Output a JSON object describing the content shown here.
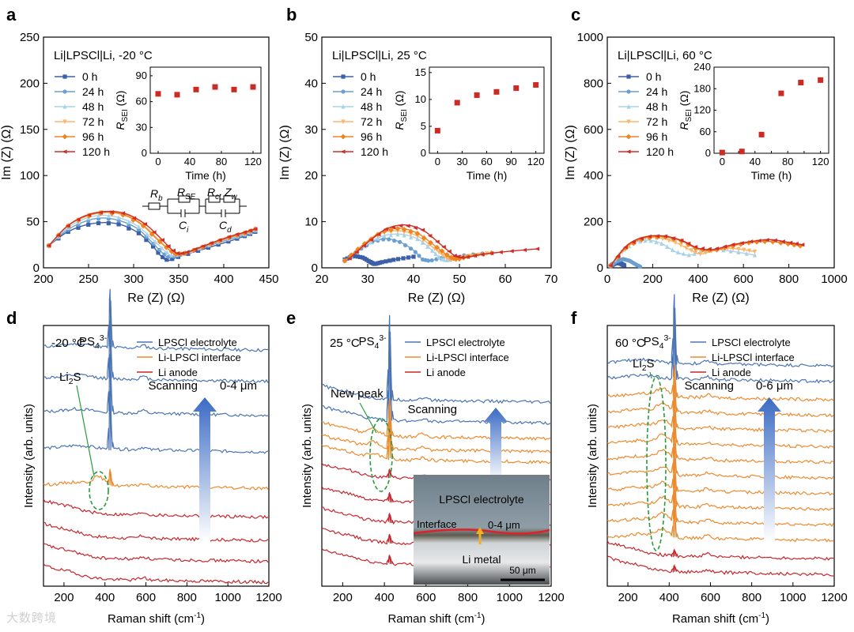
{
  "figure_labels": [
    "a",
    "b",
    "c",
    "d",
    "e",
    "f"
  ],
  "colors": {
    "0 h": "#3b5fa8",
    "24 h": "#6a9fd0",
    "48 h": "#a9d2ea",
    "72 h": "#f9b66c",
    "96 h": "#ef8420",
    "120 h": "#cf2d25",
    "inset": "#cc2a22",
    "electrolyte": "#4a74b4",
    "interface": "#ee8a2e",
    "anode": "#c8262b",
    "li2s": "#2a9a3a",
    "ps4": "#4a74b4"
  },
  "chart_data": [
    {
      "id": "a",
      "type": "line",
      "title": "Li|LPSCl|Li, -20 °C",
      "xlabel": "Re (Z) (Ω)",
      "ylabel": "Im (Z) (Ω)",
      "xlim": [
        200,
        450
      ],
      "ylim": [
        0,
        250
      ],
      "xticks": [
        200,
        250,
        300,
        350,
        400,
        450
      ],
      "yticks": [
        0,
        50,
        100,
        150,
        200,
        250
      ],
      "legend": [
        "0 h",
        "24 h",
        "48 h",
        "72 h",
        "96 h",
        "120 h"
      ],
      "circuit": {
        "Rb": "Rb",
        "RSE": "RSE",
        "Rct": "Rct",
        "Zw": "Zw",
        "Ci": "Ci",
        "Cd": "Cd"
      },
      "series": [
        {
          "name": "0 h",
          "x": [
            206,
            225,
            245,
            265,
            285,
            305,
            320,
            330,
            338,
            350,
            370,
            390,
            410,
            425,
            435
          ],
          "y": [
            24,
            38,
            46,
            49,
            47,
            38,
            25,
            13,
            8,
            12,
            18,
            24,
            30,
            35,
            39
          ]
        },
        {
          "name": "24 h",
          "x": [
            206,
            225,
            245,
            265,
            285,
            305,
            320,
            332,
            340,
            352,
            370,
            390,
            410,
            425,
            435
          ],
          "y": [
            24,
            40,
            50,
            54,
            51,
            42,
            28,
            16,
            11,
            14,
            20,
            26,
            32,
            36,
            40
          ]
        },
        {
          "name": "48 h",
          "x": [
            206,
            225,
            245,
            265,
            285,
            305,
            322,
            335,
            343,
            355,
            372,
            390,
            410,
            425,
            435
          ],
          "y": [
            24,
            42,
            53,
            57,
            54,
            45,
            30,
            18,
            13,
            15,
            21,
            27,
            33,
            37,
            41
          ]
        },
        {
          "name": "72 h",
          "x": [
            206,
            225,
            245,
            268,
            290,
            310,
            327,
            340,
            348,
            358,
            375,
            392,
            410,
            425,
            435
          ],
          "y": [
            24,
            44,
            56,
            61,
            58,
            47,
            31,
            19,
            14,
            16,
            22,
            28,
            34,
            38,
            42
          ]
        },
        {
          "name": "96 h",
          "x": [
            206,
            225,
            245,
            268,
            290,
            310,
            327,
            340,
            348,
            358,
            375,
            392,
            410,
            425,
            435
          ],
          "y": [
            24,
            44,
            55,
            60,
            57,
            46,
            30,
            19,
            14,
            16,
            22,
            28,
            34,
            38,
            42
          ]
        },
        {
          "name": "120 h",
          "x": [
            206,
            225,
            245,
            268,
            290,
            312,
            330,
            342,
            350,
            360,
            376,
            392,
            410,
            425,
            435
          ],
          "y": [
            24,
            44,
            56,
            61,
            59,
            48,
            32,
            20,
            15,
            17,
            23,
            29,
            35,
            39,
            42
          ]
        }
      ],
      "inset": {
        "xlabel": "Time (h)",
        "ylabel": "R_SEI (Ω)",
        "xlim": [
          -10,
          130
        ],
        "ylim": [
          0,
          100
        ],
        "xticks": [
          0,
          40,
          80,
          120
        ],
        "yticks": [
          0,
          30,
          60,
          90
        ],
        "x": [
          0,
          24,
          48,
          72,
          96,
          120
        ],
        "y": [
          69,
          68,
          74,
          77,
          74,
          77
        ]
      }
    },
    {
      "id": "b",
      "type": "line",
      "title": "Li|LPSCl|Li, 25 °C",
      "xlabel": "Re (Z) (Ω)",
      "ylabel": "Im (Z) (Ω)",
      "xlim": [
        20,
        70
      ],
      "ylim": [
        0,
        50
      ],
      "xticks": [
        20,
        30,
        40,
        50,
        60,
        70
      ],
      "yticks": [
        0,
        10,
        20,
        30,
        40,
        50
      ],
      "legend": [
        "0 h",
        "24 h",
        "48 h",
        "72 h",
        "96 h",
        "120 h"
      ],
      "series": [
        {
          "name": "0 h",
          "x": [
            25,
            27,
            29,
            30.5,
            31.5,
            33,
            36,
            40
          ],
          "y": [
            1.8,
            2.6,
            2.2,
            1.3,
            0.8,
            1.2,
            1.8,
            2.4
          ]
        },
        {
          "name": "24 h",
          "x": [
            25,
            28,
            31,
            34,
            37,
            40,
            42,
            43.5,
            46,
            50,
            55
          ],
          "y": [
            1.6,
            3.8,
            5.6,
            6.3,
            5.6,
            3.8,
            1.8,
            1.5,
            2.1,
            2.6,
            3.1
          ]
        },
        {
          "name": "48 h",
          "x": [
            25,
            29,
            33,
            37,
            41,
            44,
            46,
            47.5,
            50,
            55
          ],
          "y": [
            1.5,
            4.5,
            6.8,
            7.3,
            6.2,
            3.8,
            1.9,
            1.6,
            2.3,
            3.0
          ]
        },
        {
          "name": "72 h",
          "x": [
            25,
            29,
            33,
            37,
            41,
            44.5,
            47,
            48.5,
            51,
            56
          ],
          "y": [
            1.5,
            4.8,
            7.5,
            8.0,
            6.8,
            4.2,
            2.2,
            1.7,
            2.4,
            3.1
          ]
        },
        {
          "name": "96 h",
          "x": [
            25,
            29,
            33,
            37,
            41,
            45,
            48,
            49.5,
            52,
            57
          ],
          "y": [
            1.5,
            5.0,
            7.8,
            8.6,
            7.4,
            4.5,
            2.3,
            1.8,
            2.5,
            3.2
          ]
        },
        {
          "name": "120 h",
          "x": [
            26,
            30,
            34,
            38,
            42,
            46,
            49,
            51,
            55,
            60,
            67
          ],
          "y": [
            2.0,
            5.5,
            8.4,
            9.3,
            8.2,
            5.0,
            2.6,
            2.2,
            2.9,
            3.5,
            4.1
          ]
        }
      ],
      "inset": {
        "xlabel": "Time (h)",
        "ylabel": "R_SEI (Ω)",
        "xlim": [
          -10,
          130
        ],
        "ylim": [
          0,
          16
        ],
        "xticks": [
          0,
          30,
          60,
          90,
          120
        ],
        "yticks": [
          0,
          5,
          10,
          15
        ],
        "x": [
          0,
          24,
          48,
          72,
          96,
          120
        ],
        "y": [
          4.2,
          9.4,
          10.8,
          11.4,
          12.1,
          12.7
        ]
      }
    },
    {
      "id": "c",
      "type": "line",
      "title": "Li|LPSCl|Li, 60 °C",
      "xlabel": "Re (Z) (Ω)",
      "ylabel": "Im (Z) (Ω)",
      "xlim": [
        0,
        1000
      ],
      "ylim": [
        0,
        1000
      ],
      "xticks": [
        0,
        200,
        400,
        600,
        800,
        1000
      ],
      "yticks": [
        0,
        200,
        400,
        600,
        800,
        1000
      ],
      "legend": [
        "0 h",
        "24 h",
        "48 h",
        "72 h",
        "96 h",
        "120 h"
      ],
      "series": [
        {
          "name": "0 h",
          "x": [
            15,
            30,
            45,
            60,
            75
          ],
          "y": [
            8,
            18,
            22,
            18,
            10
          ]
        },
        {
          "name": "24 h",
          "x": [
            15,
            40,
            70,
            100,
            130,
            145
          ],
          "y": [
            8,
            28,
            38,
            30,
            12,
            5
          ]
        },
        {
          "name": "48 h",
          "x": [
            15,
            60,
            120,
            180,
            240,
            300,
            360,
            420,
            480,
            560,
            650
          ],
          "y": [
            10,
            70,
            110,
            120,
            105,
            70,
            55,
            70,
            80,
            70,
            55
          ]
        },
        {
          "name": "72 h",
          "x": [
            15,
            80,
            150,
            230,
            300,
            360,
            410,
            470,
            530,
            590,
            650
          ],
          "y": [
            10,
            85,
            125,
            130,
            110,
            80,
            60,
            75,
            85,
            80,
            70
          ]
        },
        {
          "name": "96 h",
          "x": [
            15,
            90,
            170,
            250,
            330,
            400,
            470,
            550,
            630,
            710,
            790,
            850
          ],
          "y": [
            10,
            95,
            130,
            135,
            115,
            80,
            75,
            95,
            110,
            115,
            105,
            95
          ]
        },
        {
          "name": "120 h",
          "x": [
            15,
            90,
            170,
            250,
            330,
            400,
            470,
            550,
            640,
            720,
            800,
            860
          ],
          "y": [
            10,
            100,
            135,
            138,
            118,
            85,
            80,
            100,
            115,
            122,
            110,
            100
          ]
        }
      ],
      "inset": {
        "xlabel": "Time (h)",
        "ylabel": "R_SEI (Ω)",
        "xlim": [
          -10,
          130
        ],
        "ylim": [
          0,
          240
        ],
        "xticks": [
          0,
          20,
          40,
          60,
          80,
          100,
          120
        ],
        "yticks": [
          0,
          60,
          120,
          180,
          240
        ],
        "x": [
          0,
          24,
          48,
          72,
          96,
          120
        ],
        "y": [
          2,
          5,
          52,
          167,
          197,
          204
        ]
      }
    },
    {
      "id": "d",
      "type": "line",
      "xlabel": "Raman shift (cm⁻¹)",
      "ylabel": "Intensity (arb. units)",
      "xlim": [
        100,
        1200
      ],
      "xticks": [
        200,
        400,
        600,
        800,
        1000,
        1200
      ],
      "temperature": "-20 °C",
      "legend": [
        "LPSCl electrolyte",
        "Li-LPSCl interface",
        "Li anode"
      ],
      "annotations": {
        "peak": "PS4 3-",
        "species": "Li2S",
        "scan": "Scanning",
        "depth": "0-4 μm"
      },
      "peak_x": 425,
      "li2s_x": 370,
      "series": [
        {
          "name": "LPSCl electrolyte",
          "offsets": [
            0.92,
            0.8,
            0.67,
            0.53
          ],
          "peak_height": 0.22
        },
        {
          "name": "Li-LPSCl interface",
          "offsets": [
            0.39
          ],
          "peak_height": 0.06
        },
        {
          "name": "Li anode",
          "offsets": [
            0.28,
            0.19,
            0.11,
            0.03
          ],
          "peak_height": 0
        }
      ]
    },
    {
      "id": "e",
      "type": "line",
      "xlabel": "Raman shift (cm⁻¹)",
      "ylabel": "Intensity (arb. units)",
      "xlim": [
        100,
        1200
      ],
      "xticks": [
        200,
        400,
        600,
        800,
        1000,
        1200
      ],
      "temperature": "25 °C",
      "legend": [
        "LPSCl electrolyte",
        "Li-LPSCl interface",
        "Li anode"
      ],
      "annotations": {
        "peak": "PS4 3-",
        "species": "New peak",
        "scan": "Scanning",
        "image_top": "LPSCl electrolyte",
        "image_mid": "Interface",
        "image_depth": "0-4 μm",
        "image_bottom": "Li metal",
        "scale_bar": "50 μm"
      },
      "peak_x": 425,
      "newpeak_x": 350,
      "series": [
        {
          "name": "LPSCl electrolyte",
          "offsets": [
            0.72,
            0.64
          ],
          "peak_height": 0.32
        },
        {
          "name": "Li-LPSCl interface",
          "offsets": [
            0.58,
            0.53,
            0.49
          ],
          "peak_height": 0.14
        },
        {
          "name": "Li anode",
          "offsets": [
            0.42,
            0.33,
            0.25,
            0.17,
            0.09
          ],
          "peak_height": 0.03
        }
      ]
    },
    {
      "id": "f",
      "type": "line",
      "xlabel": "Raman shift (cm⁻¹)",
      "ylabel": "Intensity (arb. units)",
      "xlim": [
        100,
        1200
      ],
      "xticks": [
        200,
        400,
        600,
        800,
        1000,
        1200
      ],
      "temperature": "60 °C",
      "legend": [
        "LPSCl electrolyte",
        "Li-LPSCl interface",
        "Li anode"
      ],
      "annotations": {
        "peak": "PS4 3-",
        "species": "Li2S",
        "scan": "Scanning",
        "depth": "0-6 μm"
      },
      "peak_x": 425,
      "li2s_x": 370,
      "series": [
        {
          "name": "LPSCl electrolyte",
          "offsets": [
            0.86,
            0.8
          ],
          "peak_height": 0.26
        },
        {
          "name": "Li-LPSCl interface",
          "offsets": [
            0.73,
            0.67,
            0.61,
            0.55,
            0.49,
            0.43,
            0.37,
            0.31,
            0.25,
            0.19
          ],
          "peak_height": 0.12
        },
        {
          "name": "Li anode",
          "offsets": [
            0.12,
            0.06
          ],
          "peak_height": 0.02
        }
      ]
    }
  ],
  "watermark": "大数跨境"
}
